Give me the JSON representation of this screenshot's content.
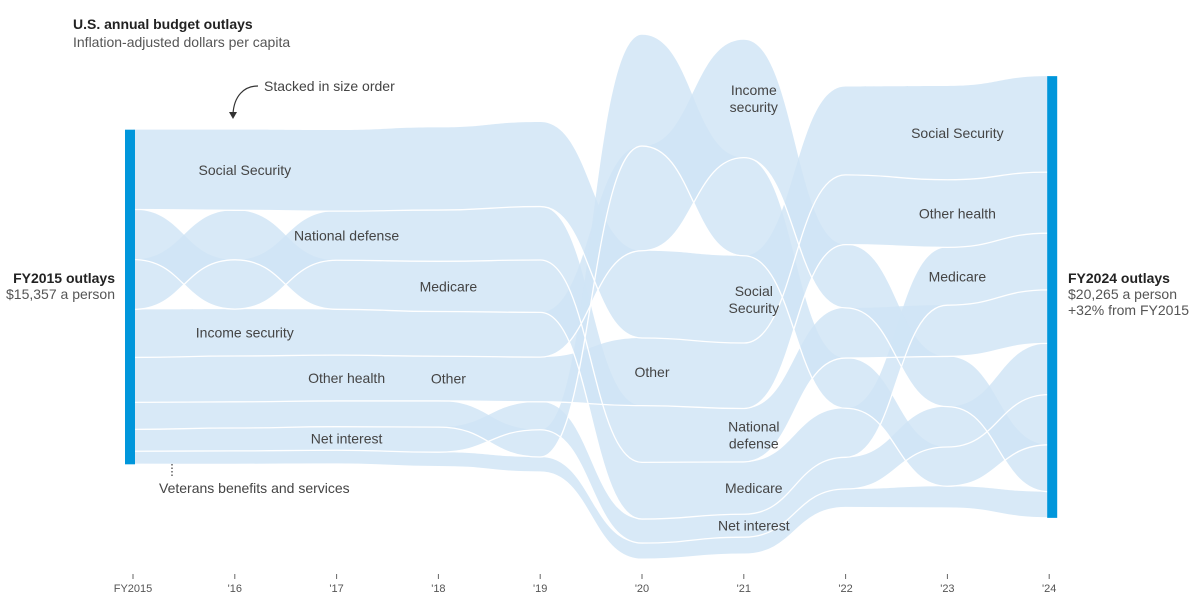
{
  "header": {
    "title": "U.S. annual budget outlays",
    "subtitle": "Inflation-adjusted dollars per capita"
  },
  "left_summary": {
    "title": "FY2015 outlays",
    "line1": "$15,357 a person"
  },
  "right_summary": {
    "title": "FY2024 outlays",
    "line1": "$20,265 a person",
    "line2": "+32% from FY2015"
  },
  "annotations": {
    "stacked": "Stacked in size order",
    "veterans": "Veterans benefits and services"
  },
  "colors": {
    "band": "#cfe4f5",
    "band_overlap": "#b5d8f0",
    "total_bar": "#0096db",
    "divider": "#ffffff",
    "label": "#444444"
  },
  "chart_data": {
    "type": "area",
    "subtype": "ranked stacked ribbon",
    "title": "U.S. annual budget outlays",
    "subtitle": "Inflation-adjusted dollars per capita",
    "x": [
      "FY2015",
      "'16",
      "'17",
      "'18",
      "'19",
      "'20",
      "'21",
      "'22",
      "'23",
      "'24"
    ],
    "xlabel": "",
    "ylabel": "",
    "ordering": "stacked in size order (largest on top) each year",
    "totals": {
      "FY2015": 15357,
      "'24": 20265
    },
    "series": [
      {
        "name": "Social Security",
        "values": [
          3660,
          3700,
          3720,
          3790,
          3880,
          4000,
          4000,
          4050,
          4300,
          4400
        ]
      },
      {
        "name": "National defense",
        "values": [
          2290,
          2260,
          2250,
          2350,
          2450,
          2600,
          2450,
          2300,
          2350,
          2450
        ]
      },
      {
        "name": "Medicare",
        "values": [
          2290,
          2270,
          2250,
          2300,
          2400,
          2600,
          2400,
          2250,
          2650,
          2600
        ]
      },
      {
        "name": "Income security",
        "values": [
          2200,
          2150,
          2100,
          2050,
          2050,
          4800,
          5400,
          2900,
          2300,
          2150
        ]
      },
      {
        "name": "Other health",
        "values": [
          2060,
          2100,
          2100,
          2050,
          2050,
          3100,
          3000,
          3200,
          3100,
          2800
        ]
      },
      {
        "name": "Other",
        "values": [
          1240,
          1200,
          1180,
          1200,
          1250,
          5100,
          4500,
          2300,
          1800,
          2300
        ]
      },
      {
        "name": "Net interest",
        "values": [
          1000,
          1050,
          1080,
          1150,
          1280,
          1100,
          1050,
          1450,
          1850,
          2350
        ]
      },
      {
        "name": "Veterans benefits and services",
        "values": [
          600,
          620,
          630,
          660,
          690,
          740,
          780,
          850,
          1000,
          1200
        ]
      }
    ],
    "labels": [
      {
        "text": "Social Security",
        "year": "'16"
      },
      {
        "text": "National defense",
        "year": "'17"
      },
      {
        "text": "Medicare",
        "year": "'18"
      },
      {
        "text": "Income security",
        "year": "'16"
      },
      {
        "text": "Other health",
        "year": "'17"
      },
      {
        "text": "Other",
        "year": "'18"
      },
      {
        "text": "Net interest",
        "year": "'17"
      },
      {
        "text": "Other",
        "year": "'20"
      },
      {
        "text": "Income security",
        "year": "'21"
      },
      {
        "text": "Social Security",
        "year": "'21"
      },
      {
        "text": "National defense",
        "year": "'21"
      },
      {
        "text": "Medicare",
        "year": "'21"
      },
      {
        "text": "Net interest",
        "year": "'21"
      },
      {
        "text": "Social Security",
        "year": "'23"
      },
      {
        "text": "Other health",
        "year": "'23"
      },
      {
        "text": "Medicare",
        "year": "'23"
      }
    ],
    "grid": false,
    "legend": "none (direct labels)"
  }
}
